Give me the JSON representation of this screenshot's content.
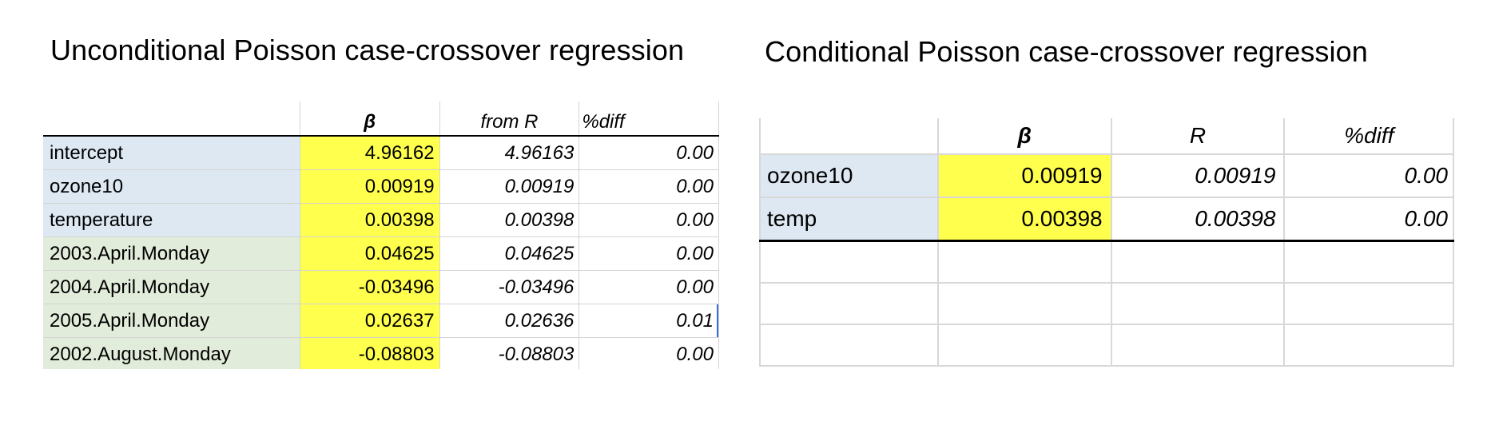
{
  "left": {
    "title": "Unconditional Poisson case-crossover regression",
    "headers": [
      "",
      "β",
      "from R",
      "%diff"
    ],
    "rows": [
      {
        "label": "intercept",
        "beta": "4.96162",
        "from_r": "4.96163",
        "diff": "0.00"
      },
      {
        "label": "ozone10",
        "beta": "0.00919",
        "from_r": "0.00919",
        "diff": "0.00"
      },
      {
        "label": "temperature",
        "beta": "0.00398",
        "from_r": "0.00398",
        "diff": "0.00"
      },
      {
        "label": "2003.April.Monday",
        "beta": "0.04625",
        "from_r": "0.04625",
        "diff": "0.00"
      },
      {
        "label": "2004.April.Monday",
        "beta": "-0.03496",
        "from_r": "-0.03496",
        "diff": "0.00"
      },
      {
        "label": "2005.April.Monday",
        "beta": "0.02637",
        "from_r": "0.02636",
        "diff": "0.01"
      },
      {
        "label": "2002.August.Monday",
        "beta": "-0.08803",
        "from_r": "-0.08803",
        "diff": "0.00"
      }
    ]
  },
  "right": {
    "title": "Conditional Poisson case-crossover regression",
    "headers": [
      "",
      "β",
      "R",
      "%diff"
    ],
    "rows": [
      {
        "label": "ozone10",
        "beta": "0.00919",
        "r": "0.00919",
        "diff": "0.00"
      },
      {
        "label": "temp",
        "beta": "0.00398",
        "r": "0.00398",
        "diff": "0.00"
      }
    ]
  }
}
